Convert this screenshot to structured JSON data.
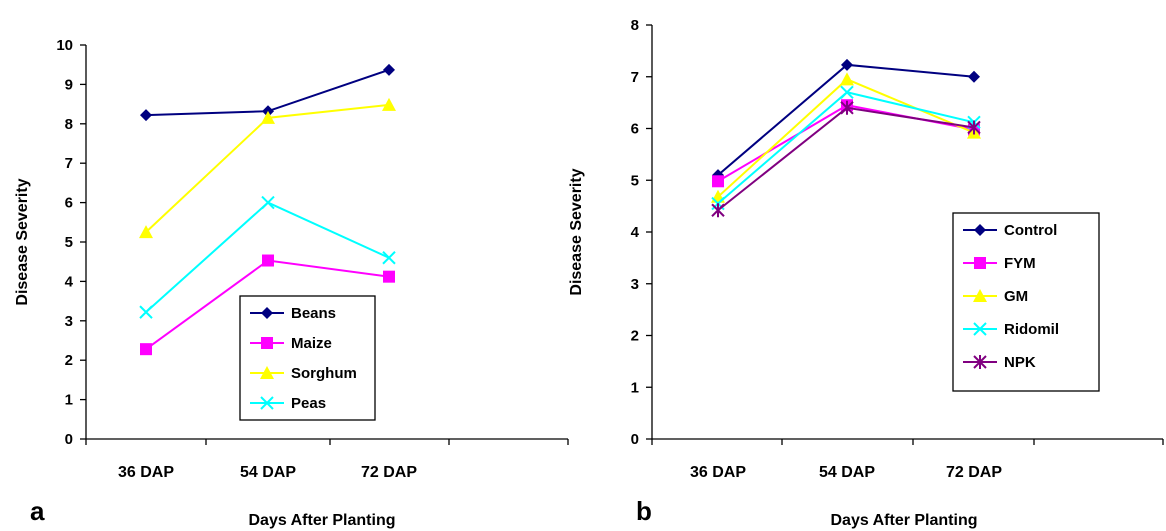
{
  "chart_data": [
    {
      "type": "line",
      "panel_label": "a",
      "xlabel": "Days After Planting",
      "ylabel": "Disease  Severity",
      "categories": [
        "36 DAP",
        "54 DAP",
        "72 DAP"
      ],
      "ylim": [
        0,
        10
      ],
      "yticks": [
        0,
        1,
        2,
        3,
        4,
        5,
        6,
        7,
        8,
        9,
        10
      ],
      "grid": false,
      "legend_position": "bottom-right",
      "series": [
        {
          "name": "Beans",
          "values": [
            8.22,
            8.32,
            9.37
          ],
          "color": "#000080",
          "marker": "diamond"
        },
        {
          "name": "Maize",
          "values": [
            2.28,
            4.53,
            4.12
          ],
          "color": "#ff00ff",
          "marker": "square"
        },
        {
          "name": "Sorghum",
          "values": [
            5.25,
            8.15,
            8.48
          ],
          "color": "#ffff00",
          "marker": "triangle"
        },
        {
          "name": "Peas",
          "values": [
            3.22,
            6.0,
            4.6
          ],
          "color": "#00ffff",
          "marker": "x"
        }
      ]
    },
    {
      "type": "line",
      "panel_label": "b",
      "xlabel": "Days After Planting",
      "ylabel": "Disease  Severity",
      "categories": [
        "36 DAP",
        "54 DAP",
        "72 DAP"
      ],
      "ylim": [
        0,
        8
      ],
      "yticks": [
        0,
        1,
        2,
        3,
        4,
        5,
        6,
        7,
        8
      ],
      "grid": false,
      "legend_position": "right",
      "series": [
        {
          "name": "Control",
          "values": [
            5.1,
            7.23,
            7.0
          ],
          "color": "#000080",
          "marker": "diamond"
        },
        {
          "name": "FYM",
          "values": [
            4.98,
            6.45,
            5.98
          ],
          "color": "#ff00ff",
          "marker": "square"
        },
        {
          "name": "GM",
          "values": [
            4.68,
            6.95,
            5.92
          ],
          "color": "#ffff00",
          "marker": "triangle"
        },
        {
          "name": "Ridomil",
          "values": [
            4.55,
            6.7,
            6.12
          ],
          "color": "#00ffff",
          "marker": "x"
        },
        {
          "name": "NPK",
          "values": [
            4.42,
            6.4,
            6.02
          ],
          "color": "#800080",
          "marker": "star"
        }
      ]
    }
  ]
}
